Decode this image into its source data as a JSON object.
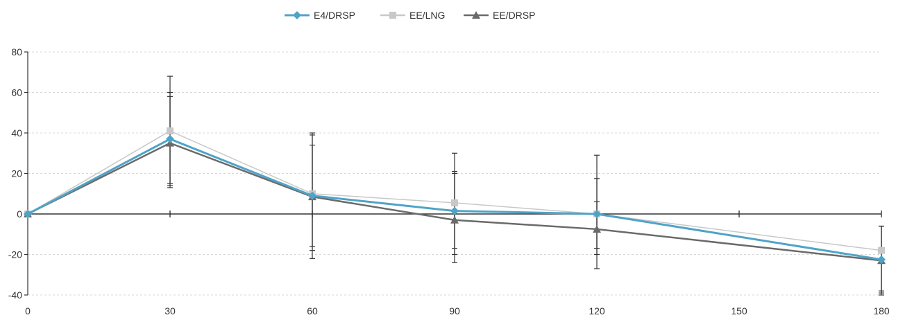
{
  "chart_data": {
    "type": "line",
    "title": "",
    "xlabel": "",
    "ylabel": "",
    "x": [
      0,
      30,
      60,
      90,
      120,
      180
    ],
    "xticks": [
      0,
      30,
      60,
      90,
      120,
      150,
      180
    ],
    "xtick_labels": [
      "0",
      "30",
      "60",
      "90",
      "120",
      "150",
      "180"
    ],
    "yticks": [
      -40,
      -20,
      0,
      20,
      40,
      60,
      80
    ],
    "ytick_labels": [
      "-40",
      "-20",
      "0",
      "20",
      "40",
      "60",
      "80"
    ],
    "xlim": [
      0,
      180
    ],
    "ylim": [
      -40,
      80
    ],
    "grid": "horizontal dashed",
    "legend_position": "top-center",
    "series": [
      {
        "name": "E4/DRSP",
        "color": "#4fa3c7",
        "marker": "diamond",
        "values": [
          0,
          37,
          9,
          1.5,
          0,
          -22.5
        ],
        "error_upper": [
          0,
          58,
          34,
          20,
          17.5,
          -6
        ],
        "error_lower": [
          0,
          15,
          -16,
          -17,
          -17,
          -38
        ]
      },
      {
        "name": "EE/LNG",
        "color": "#c8c8c8",
        "marker": "square",
        "values": [
          0,
          41,
          10,
          5.5,
          0,
          -18
        ],
        "error_upper": [
          0,
          68,
          39,
          30,
          29,
          -6
        ],
        "error_lower": [
          0,
          14,
          -18,
          -20,
          -20,
          -40
        ]
      },
      {
        "name": "EE/DRSP",
        "color": "#6a6a6a",
        "marker": "triangle",
        "values": [
          0,
          35,
          8.5,
          -3,
          -7.5,
          -23
        ],
        "error_upper": [
          0,
          60,
          40,
          21,
          6,
          -6
        ],
        "error_lower": [
          0,
          13,
          -22,
          -24,
          -27,
          -39
        ]
      }
    ]
  }
}
